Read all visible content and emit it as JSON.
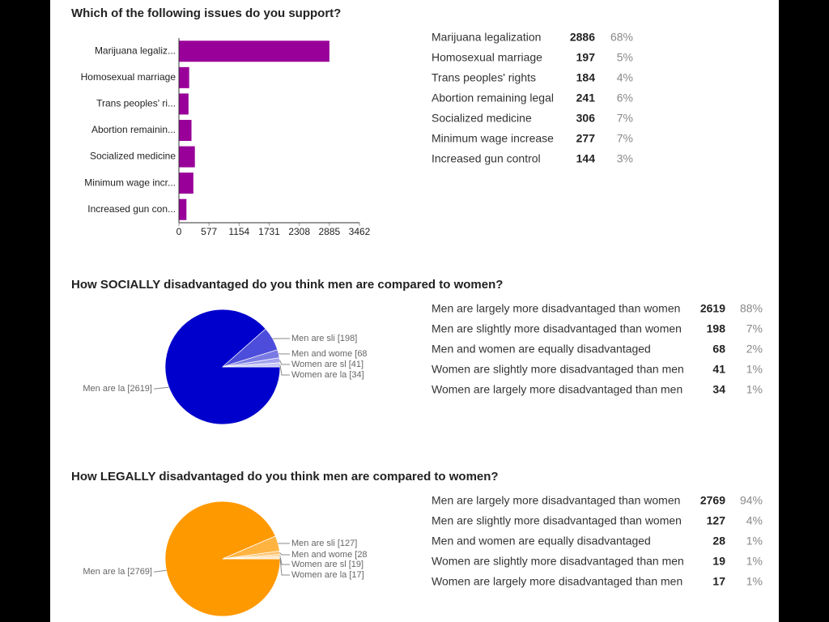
{
  "chart_data": [
    {
      "type": "bar",
      "title": "Which of the following issues do you support?",
      "categories": [
        "Marijuana legaliz...",
        "Homosexual marriage",
        "Trans peoples' ri...",
        "Abortion remainin...",
        "Socialized medicine",
        "Minimum wage incr...",
        "Increased gun con..."
      ],
      "values": [
        2886,
        197,
        184,
        241,
        306,
        277,
        144
      ],
      "color": "#990099",
      "xlim": [
        0,
        3462
      ],
      "xticks": [
        0,
        577,
        1154,
        1731,
        2308,
        2885,
        3462
      ]
    },
    {
      "type": "pie",
      "title": "How SOCIALLY disadvantaged do you think men are compared to women?",
      "values": [
        2619,
        198,
        68,
        41,
        34
      ],
      "slice_labels": [
        "Men are la [2619]",
        "Men are sli [198]",
        "Men and wome [68",
        "Women are sl [41]",
        "Women are la [34]"
      ],
      "colors": [
        "#0000cc",
        "#4d4ddb",
        "#7a7ae4",
        "#a3a3ee",
        "#c9c9f5"
      ]
    },
    {
      "type": "pie",
      "title": "How LEGALLY disadvantaged do you think men are compared to women?",
      "values": [
        2769,
        127,
        28,
        19,
        17
      ],
      "slice_labels": [
        "Men are la [2769]",
        "Men are sli [127]",
        "Men and wome [28",
        "Women are sl [19]",
        "Women are la [17]"
      ],
      "colors": [
        "#ff9900",
        "#ffb340",
        "#ffc46e",
        "#ffd699",
        "#ffe6c2"
      ]
    }
  ],
  "tables": [
    {
      "rows": [
        [
          "Marijuana legalization",
          "2886",
          "68%"
        ],
        [
          "Homosexual marriage",
          "197",
          "5%"
        ],
        [
          "Trans peoples' rights",
          "184",
          "4%"
        ],
        [
          "Abortion remaining legal",
          "241",
          "6%"
        ],
        [
          "Socialized medicine",
          "306",
          "7%"
        ],
        [
          "Minimum wage increase",
          "277",
          "7%"
        ],
        [
          "Increased gun control",
          "144",
          "3%"
        ]
      ]
    },
    {
      "rows": [
        [
          "Men are largely more disadvantaged than women",
          "2619",
          "88%"
        ],
        [
          "Men are slightly more disadvantaged than women",
          "198",
          "7%"
        ],
        [
          "Men and women are equally disadvantaged",
          "68",
          "2%"
        ],
        [
          "Women are slightly more disadvantaged than men",
          "41",
          "1%"
        ],
        [
          "Women are largely more disadvantaged than men",
          "34",
          "1%"
        ]
      ]
    },
    {
      "rows": [
        [
          "Men are largely more disadvantaged than women",
          "2769",
          "94%"
        ],
        [
          "Men are slightly more disadvantaged than women",
          "127",
          "4%"
        ],
        [
          "Men and women are equally disadvantaged",
          "28",
          "1%"
        ],
        [
          "Women are slightly more disadvantaged than men",
          "19",
          "1%"
        ],
        [
          "Women are largely more disadvantaged than men",
          "17",
          "1%"
        ]
      ]
    }
  ]
}
